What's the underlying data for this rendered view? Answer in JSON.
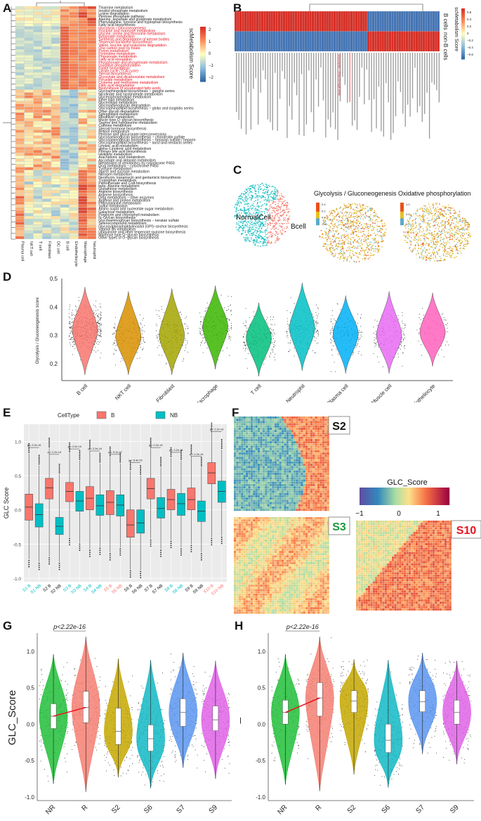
{
  "panels": {
    "A": {
      "letter": "A",
      "colorbar_title": "scMetabolism Score",
      "colorbar_ticks": [
        "2",
        "1",
        "0",
        "−1",
        "−2"
      ],
      "columns": [
        "Plasma cell",
        "NKT cell",
        "T cell",
        "Fibroblast",
        "DC cell",
        "B cell",
        "Endotheliocyte",
        "Macrophage",
        "Neutrophil"
      ],
      "rows": [
        {
          "label": "Thiamine metabolism",
          "red": false
        },
        {
          "label": "Inositol phosphate metabolism",
          "red": false
        },
        {
          "label": "Lysine degradation",
          "red": false
        },
        {
          "label": "Pentose phosphate pathway",
          "red": false
        },
        {
          "label": "Alanine, aspartate and glutamate metabolism",
          "red": false
        },
        {
          "label": "Phenylalanine, tyrosine and tryptophan biosynthesis",
          "red": false
        },
        {
          "label": "Fatty acid biosynthesis",
          "red": false
        },
        {
          "label": "Glycolysis / Gluconeogenesis",
          "red": true
        },
        {
          "label": "Fructose and mannose metabolism",
          "red": true
        },
        {
          "label": "Glycine, serine and threonine metabolism",
          "red": true
        },
        {
          "label": "Butanoate metabolism",
          "red": true
        },
        {
          "label": "Synthesis and degradation of ketone bodies",
          "red": true
        },
        {
          "label": "Terpenoid backbone biosynthesis",
          "red": true
        },
        {
          "label": "Valine, leucine and isoleucine degradation",
          "red": true
        },
        {
          "label": "One carbon pool by folate",
          "red": true
        },
        {
          "label": "Purine metabolism",
          "red": true
        },
        {
          "label": "Pyrimidine metabolism",
          "red": true
        },
        {
          "label": "Propanoate metabolism",
          "red": true
        },
        {
          "label": "Fatty acid elongation",
          "red": true
        },
        {
          "label": "Phosphonate and phosphinate metabolism",
          "red": true
        },
        {
          "label": "Oxidative phosphorylation",
          "red": true
        },
        {
          "label": "Folate biosynthesis",
          "red": true
        },
        {
          "label": "Citrate cycle (TCA cycle)",
          "red": true
        },
        {
          "label": "Steroid biosynthesis",
          "red": true
        },
        {
          "label": "Glyoxylate and dicarboxylate metabolism",
          "red": true
        },
        {
          "label": "Pyruvate metabolism",
          "red": true
        },
        {
          "label": "Cysteine and methionine metabolism",
          "red": true
        },
        {
          "label": "Fatty acid degradation",
          "red": true
        },
        {
          "label": "Biosynthesis of unsaturated fatty acids",
          "red": true
        },
        {
          "label": "Glycosphingolipid biosynthesis − ganglio series",
          "red": false
        },
        {
          "label": "Nicotinate and nicotinamide metabolism",
          "red": false
        },
        {
          "label": "Glycerophospholipid metabolism",
          "red": false
        },
        {
          "label": "Ether lipid metabolism",
          "red": false
        },
        {
          "label": "Glycerolipid metabolism",
          "red": false
        },
        {
          "label": "Glycosaminoglycan degradation",
          "red": false
        },
        {
          "label": "Glycosphingolipid biosynthesis − globo and isoglobo series",
          "red": false
        },
        {
          "label": "Other glycan degradation",
          "red": false
        },
        {
          "label": "Sphingolipid metabolism",
          "red": false
        },
        {
          "label": "Riboflavin metabolism",
          "red": false
        },
        {
          "label": "Mucin type O−glycan biosynthesis",
          "red": false
        },
        {
          "label": "Taurine and hypotaurine metabolism",
          "red": false
        },
        {
          "label": "Caffeine metabolism",
          "red": false
        },
        {
          "label": "Steroid hormone biosynthesis",
          "red": false
        },
        {
          "label": "Retinol metabolism",
          "red": false
        },
        {
          "label": "Pentose and glucuronate interconversions",
          "red": false
        },
        {
          "label": "Glycosaminoglycan biosynthesis − chondroitin sulfate",
          "red": false
        },
        {
          "label": "Glycosaminoglycan biosynthesis − heparan sulfate / heparin",
          "red": false
        },
        {
          "label": "Glycosphingolipid biosynthesis − lacto and neolacto series",
          "red": false
        },
        {
          "label": "Linoleic acid metabolism",
          "red": false
        },
        {
          "label": "alpha−Linolenic acid metabolism",
          "red": false
        },
        {
          "label": "Primary bile acid biosynthesis",
          "red": false
        },
        {
          "label": "Histidine metabolism",
          "red": false
        },
        {
          "label": "Arachidonic acid metabolism",
          "red": false
        },
        {
          "label": "Ascorbate and aldarate metabolism",
          "red": false
        },
        {
          "label": "Metabolism of xenobiotics by cytochrome P450",
          "red": false
        },
        {
          "label": "Drug metabolism − cytochrome P450",
          "red": false
        },
        {
          "label": "Tyrosine metabolism",
          "red": false
        },
        {
          "label": "Starch and sucrose metabolism",
          "red": false
        },
        {
          "label": "Nitrogen metabolism",
          "red": false
        },
        {
          "label": "Neomycin, kanamycin and gentamicin biosynthesis",
          "red": false
        },
        {
          "label": "Tryptophan metabolism",
          "red": false
        },
        {
          "label": "Pantothenate and CoA biosynthesis",
          "red": false
        },
        {
          "label": "beta−Alanine metabolism",
          "red": false
        },
        {
          "label": "Glutathione metabolism",
          "red": false
        },
        {
          "label": "Arginine biosynthesis",
          "red": false
        },
        {
          "label": "Arginine biosynthesis",
          "red": false
        },
        {
          "label": "Drug metabolism − other enzymes",
          "red": false
        },
        {
          "label": "Arginine and proline metabolism",
          "red": false
        },
        {
          "label": "Phenylalanine metabolism",
          "red": false
        },
        {
          "label": "Sulfur metabolism",
          "red": false
        },
        {
          "label": "Amino sugar and nucleotide sugar metabolism",
          "red": false
        },
        {
          "label": "Galactose metabolism",
          "red": false
        },
        {
          "label": "Porphyrin and chlorophyll metabolism",
          "red": false
        },
        {
          "label": "N−Glycan biosynthesis",
          "red": false
        },
        {
          "label": "Glycosaminoglycan biosynthesis − keratan sulfate",
          "red": false
        },
        {
          "label": "Selenocompound metabolism",
          "red": false
        },
        {
          "label": "Glycosylphosphatidylinositol (GPI)−anchor biosynthesis",
          "red": false
        },
        {
          "label": "Vitamin B6 metabolism",
          "red": false
        },
        {
          "label": "Ubiquinone and other terpenoid−quinone biosynthesis",
          "red": false
        },
        {
          "label": "Mannose type O−glycan biosynthesis",
          "red": false
        },
        {
          "label": "Other types of O−glycan biosynthesis",
          "red": false
        }
      ]
    },
    "B": {
      "letter": "B",
      "rows": [
        "B cells",
        "non-B cells"
      ],
      "colorbar_title": "scMetabolism Score",
      "colorbar_ticks": [
        "0.6",
        "0.4",
        "0.2",
        "0",
        "−0.2",
        "−0.4",
        "−0.6"
      ],
      "highlighted_label": "Glycolysis / Gluconeogenesis",
      "n_columns": 85,
      "b_high_columns": 48
    },
    "C": {
      "letter": "C",
      "umap_labels": [
        "NormalCell",
        "Bcell"
      ],
      "plots": [
        {
          "title": "Glycolysis / Gluconeogenesis",
          "ticks": [
            "0.4",
            "0.2",
            "0.0",
            "-0.2"
          ]
        },
        {
          "title": "Oxidative phosphorylation",
          "ticks": [
            "1.0",
            "0.5",
            "0.0"
          ]
        }
      ],
      "colors": {
        "normal": "#1fbfc2",
        "bcell": "#f47f72"
      }
    },
    "D": {
      "letter": "D"
    },
    "E": {
      "letter": "E",
      "legend_title": "CellType",
      "legend_items": [
        {
          "label": "B",
          "color": "#f8766d"
        },
        {
          "label": "NB",
          "color": "#00bfc4"
        }
      ]
    },
    "F": {
      "letter": "F",
      "samples": [
        {
          "label": "S2",
          "color": "#111111"
        },
        {
          "label": "S3",
          "color": "#1a9a3a"
        },
        {
          "label": "S10",
          "color": "#e8121e"
        }
      ],
      "colorbar_title": "GLC_Score",
      "colorbar_ticks": [
        "−1",
        "0",
        "1"
      ]
    },
    "G": {
      "letter": "G"
    },
    "H": {
      "letter": "H"
    }
  },
  "chart_data": [
    {
      "id": "D",
      "type": "violin",
      "title": "",
      "xlabel": "",
      "ylabel": "Glycolysis / Gluconeogenesis score",
      "ylim": [
        0.14,
        0.5
      ],
      "yticks": [
        0.2,
        0.3,
        0.4,
        0.5
      ],
      "categories": [
        "B cell",
        "NKT cell",
        "Fibroblast",
        "Macrophage",
        "T cell",
        "Neutrophil",
        "Plasma cell",
        "Muscle cell",
        "Endotheliocyte"
      ],
      "colors": [
        "#f8766d",
        "#d89000",
        "#a3a500",
        "#39b600",
        "#00bf7d",
        "#00bfc4",
        "#00b0f6",
        "#e76bf3",
        "#ff62bc"
      ],
      "series": [
        {
          "name": "mode",
          "values": [
            0.32,
            0.295,
            0.3,
            0.33,
            0.29,
            0.325,
            0.305,
            0.3,
            0.31
          ]
        },
        {
          "name": "min",
          "values": [
            0.16,
            0.16,
            0.16,
            0.18,
            0.155,
            0.175,
            0.165,
            0.165,
            0.19
          ]
        },
        {
          "name": "max",
          "values": [
            0.47,
            0.455,
            0.465,
            0.475,
            0.415,
            0.485,
            0.44,
            0.455,
            0.45
          ]
        }
      ]
    },
    {
      "id": "E",
      "type": "box",
      "xlabel": "",
      "ylabel": "GLC Score",
      "ylim": [
        -1.05,
        1.25
      ],
      "yticks": [
        -1.0,
        -0.5,
        0.0,
        0.5,
        1.0
      ],
      "categories": [
        "S1 B",
        "S1 NB",
        "S2 B",
        "S2 NB",
        "S3 B",
        "S3 NB",
        "S4 B",
        "S4 NB",
        "S5 B",
        "S5 NB",
        "S6 B",
        "S6 NB",
        "S7 B",
        "S7 NB",
        "S8 B",
        "S8 NB",
        "S9 B",
        "S9 NB",
        "S10 B",
        "S10 NB"
      ],
      "label_colors": [
        "#00bfc4",
        "#00bfc4",
        "#111111",
        "#111111",
        "#00bfc4",
        "#00bfc4",
        "#00bfc4",
        "#00bfc4",
        "#f8766d",
        "#f8766d",
        "#111111",
        "#111111",
        "#111111",
        "#111111",
        "#00bfc4",
        "#00bfc4",
        "#111111",
        "#111111",
        "#f8766d",
        "#f8766d"
      ],
      "group": [
        "B",
        "NB",
        "B",
        "NB",
        "B",
        "NB",
        "B",
        "NB",
        "B",
        "NB",
        "B",
        "NB",
        "B",
        "NB",
        "B",
        "NB",
        "B",
        "NB",
        "B",
        "NB"
      ],
      "q1": [
        -0.15,
        -0.25,
        0.16,
        -0.36,
        0.12,
        -0.02,
        0.0,
        -0.08,
        -0.07,
        -0.09,
        -0.4,
        -0.34,
        0.16,
        -0.12,
        0.0,
        -0.08,
        0.0,
        -0.17,
        0.38,
        0.11
      ],
      "median": [
        0.04,
        -0.07,
        0.32,
        -0.24,
        0.27,
        0.13,
        0.17,
        0.06,
        0.11,
        0.07,
        -0.22,
        -0.19,
        0.31,
        0.02,
        0.15,
        0.09,
        0.15,
        -0.02,
        0.54,
        0.27
      ],
      "q3": [
        0.23,
        0.09,
        0.46,
        -0.11,
        0.4,
        0.27,
        0.34,
        0.22,
        0.28,
        0.22,
        0.0,
        0.0,
        0.46,
        0.18,
        0.3,
        0.24,
        0.32,
        0.13,
        0.69,
        0.42
      ],
      "whisker_low": [
        -0.72,
        -0.76,
        -0.68,
        -0.76,
        -0.4,
        -0.48,
        -0.57,
        -0.54,
        -0.62,
        -0.55,
        -0.87,
        -0.88,
        -0.42,
        -0.57,
        -0.44,
        -0.55,
        -0.5,
        -0.62,
        -0.4,
        -0.38
      ],
      "whisker_high": [
        0.82,
        0.65,
        0.9,
        0.52,
        0.83,
        0.72,
        0.87,
        0.68,
        0.77,
        0.68,
        0.57,
        0.5,
        0.9,
        0.62,
        0.76,
        0.72,
        0.8,
        0.62,
        1.12,
        0.88
      ],
      "annotations": [
        "p < 2.2e-16",
        "p < 2.2e-16",
        "p < 2.2e-16",
        "p < 2.2e-16",
        "p = 5.1e-07",
        "p = 8.4e-05",
        "p < 2.2e-16",
        "p < 2.2e-16",
        "p < 2.2e-16",
        "p < 2.2e-16"
      ],
      "annotation_y": [
        0.92,
        0.82,
        0.9,
        0.87,
        0.82,
        0.7,
        0.92,
        0.85,
        0.79,
        1.15
      ]
    },
    {
      "id": "G",
      "type": "violin",
      "ylabel": "GLC_Score",
      "ylim": [
        -1.05,
        1.25
      ],
      "yticks": [
        -1.0,
        -0.5,
        0.0,
        0.5,
        1.0
      ],
      "categories": [
        "NR",
        "R",
        "S2",
        "S6",
        "S7",
        "S9"
      ],
      "colors": [
        "#22c03a",
        "#f47f72",
        "#c5a800",
        "#12b8c4",
        "#5b95f0",
        "#e063e8"
      ],
      "median": [
        0.11,
        0.23,
        -0.1,
        -0.2,
        0.16,
        0.06
      ],
      "q1": [
        -0.06,
        0.02,
        -0.28,
        -0.37,
        -0.03,
        -0.09
      ],
      "q3": [
        0.28,
        0.45,
        0.22,
        -0.01,
        0.35,
        0.25
      ],
      "min": [
        -0.82,
        -0.93,
        -0.73,
        -0.88,
        -0.6,
        -0.75
      ],
      "max": [
        0.96,
        1.2,
        0.9,
        0.88,
        0.98,
        0.87
      ],
      "annotation": "p<2.22e-16"
    },
    {
      "id": "H",
      "type": "violin",
      "ylabel": "GLC_Score",
      "ylim": [
        -1.05,
        1.25
      ],
      "yticks": [
        -1.0,
        -0.5,
        0.0,
        0.5,
        1.0
      ],
      "categories": [
        "NR",
        "R",
        "S2",
        "S6",
        "S7",
        "S9"
      ],
      "colors": [
        "#22c03a",
        "#f47f72",
        "#c5a800",
        "#12b8c4",
        "#5b95f0",
        "#e063e8"
      ],
      "median": [
        0.16,
        0.36,
        0.32,
        -0.22,
        0.31,
        0.16
      ],
      "q1": [
        0.0,
        0.11,
        0.16,
        -0.39,
        0.17,
        0.0
      ],
      "q3": [
        0.33,
        0.57,
        0.46,
        0.0,
        0.46,
        0.33
      ],
      "min": [
        -0.83,
        -0.92,
        -0.69,
        -0.87,
        -0.41,
        -0.55
      ],
      "max": [
        0.96,
        1.2,
        0.89,
        0.88,
        0.98,
        0.87
      ],
      "annotation": "p<2.22e-16"
    }
  ]
}
